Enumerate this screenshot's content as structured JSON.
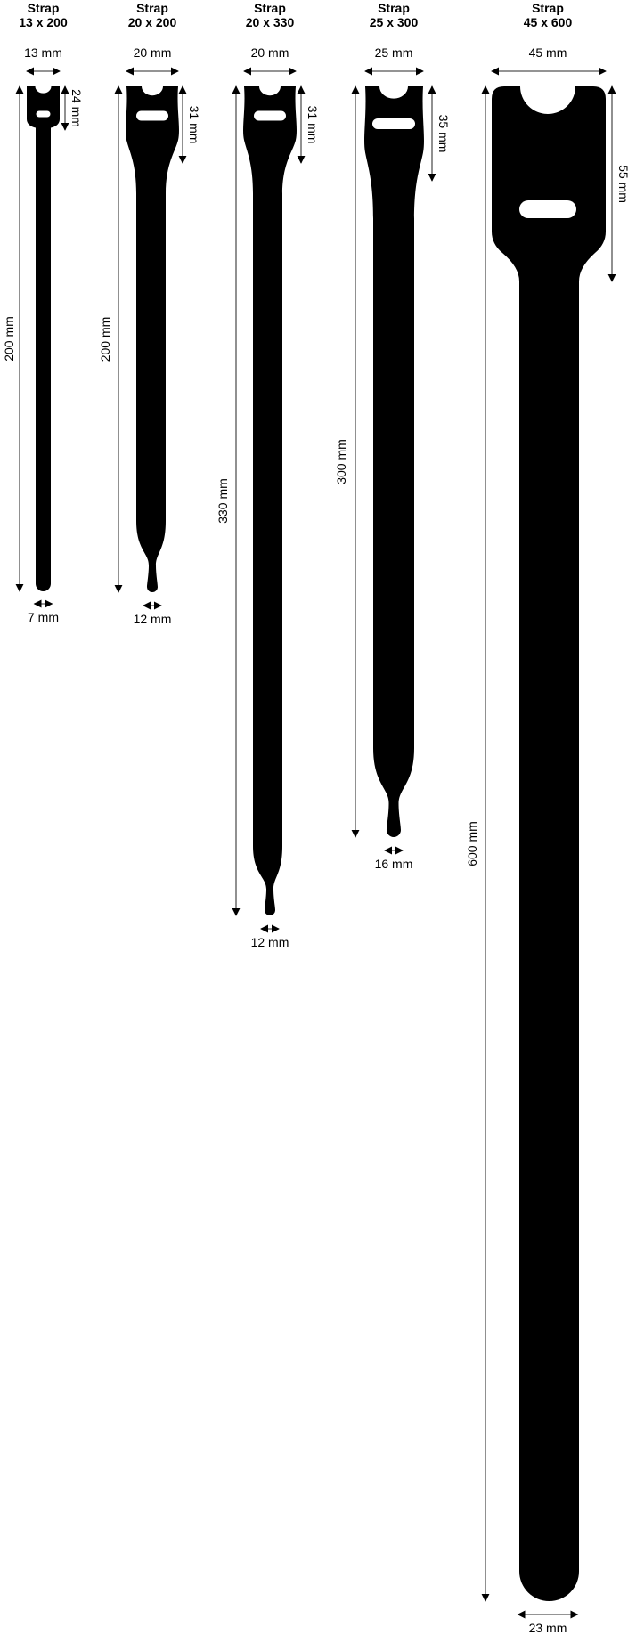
{
  "straps": [
    {
      "title_line1": "Strap",
      "title_line2": "13 x 200",
      "width_label": "13 mm",
      "length_label": "200 mm",
      "head_label": "24 mm",
      "tail_label": "7 mm"
    },
    {
      "title_line1": "Strap",
      "title_line2": "20 x 200",
      "width_label": "20 mm",
      "length_label": "200 mm",
      "head_label": "31 mm",
      "tail_label": "12 mm"
    },
    {
      "title_line1": "Strap",
      "title_line2": "20 x 330",
      "width_label": "20 mm",
      "length_label": "330 mm",
      "head_label": "31 mm",
      "tail_label": "12 mm"
    },
    {
      "title_line1": "Strap",
      "title_line2": "25 x 300",
      "width_label": "25 mm",
      "length_label": "300 mm",
      "head_label": "35 mm",
      "tail_label": "16 mm"
    },
    {
      "title_line1": "Strap",
      "title_line2": "45 x 600",
      "width_label": "45 mm",
      "length_label": "600 mm",
      "head_label": "55 mm",
      "tail_label": "23 mm"
    }
  ],
  "colors": {
    "strap": "#000000",
    "dimension_line": "#555555"
  }
}
